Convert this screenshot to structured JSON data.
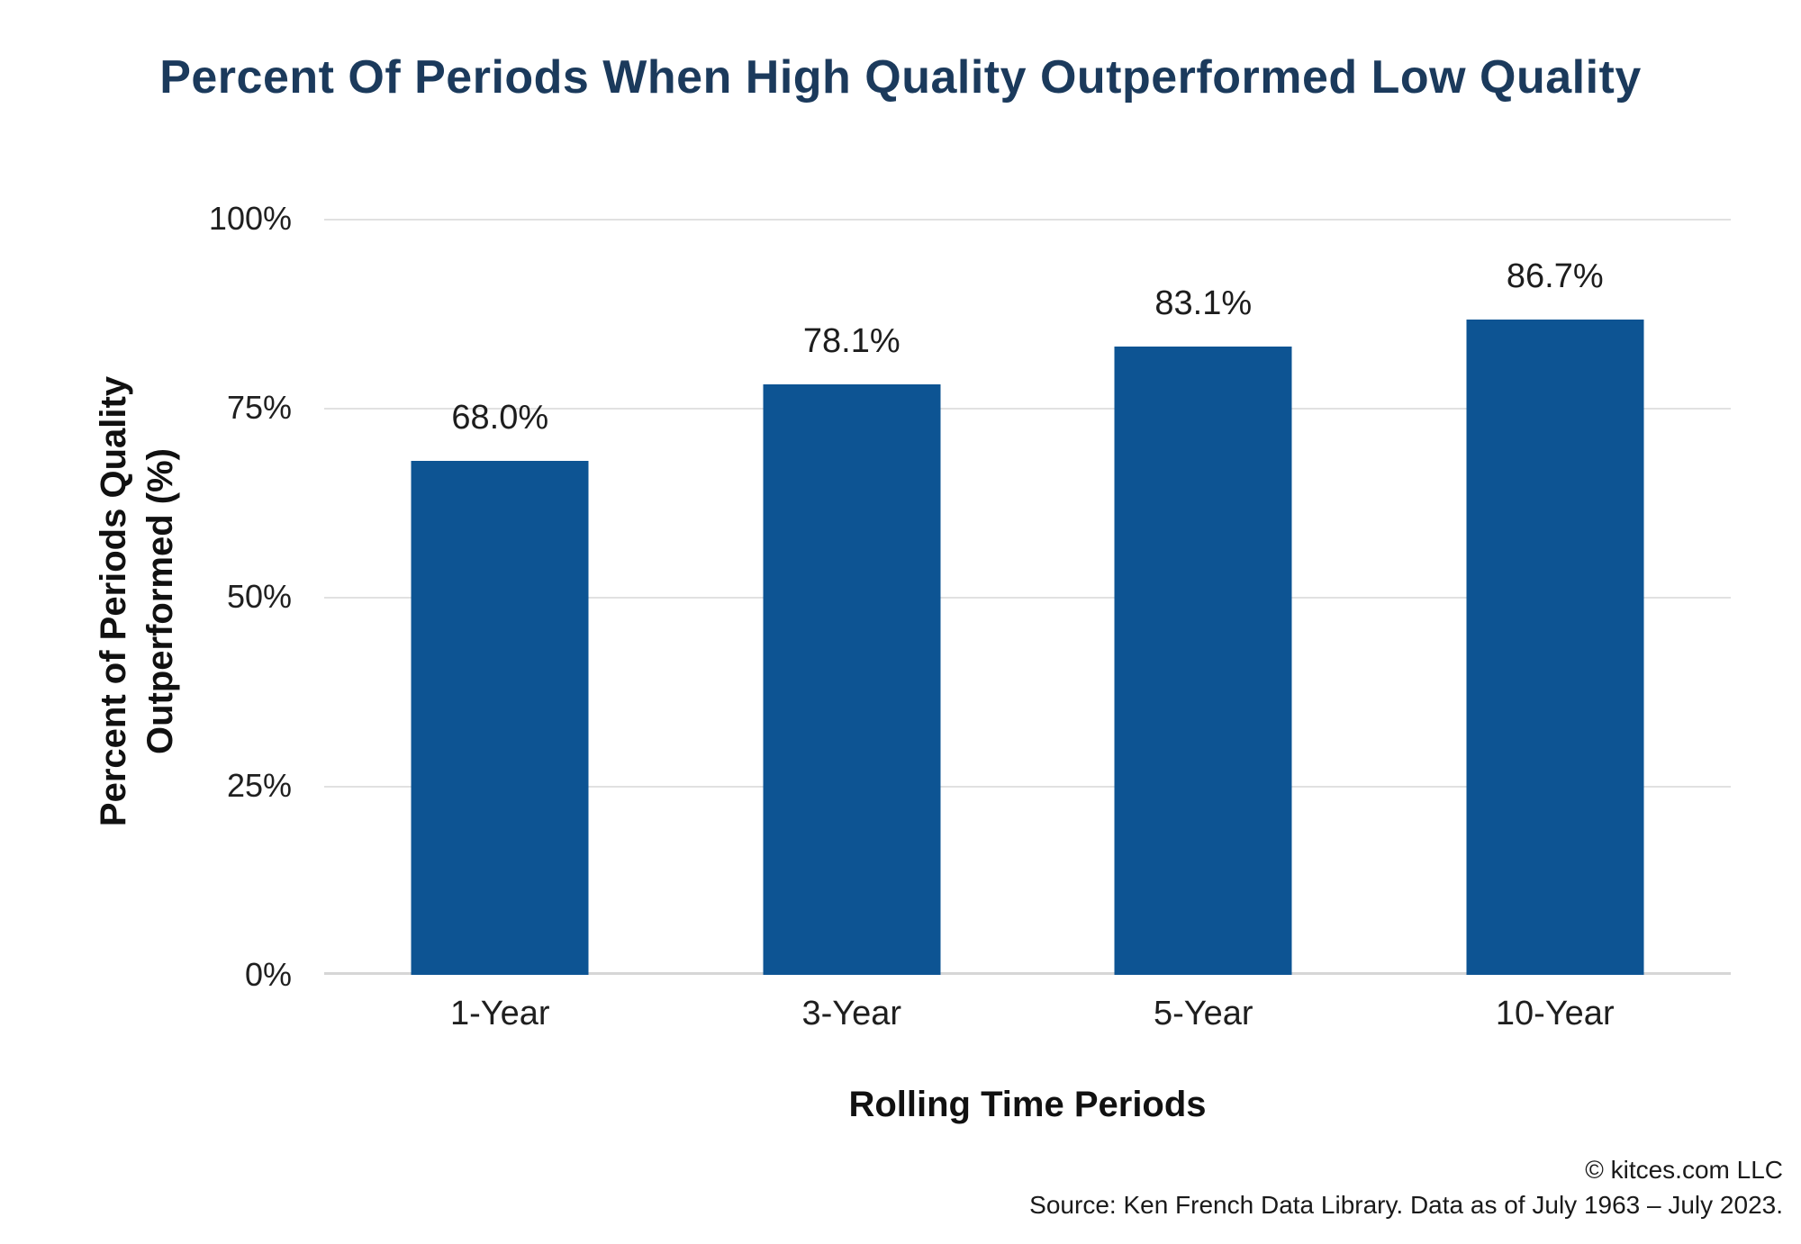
{
  "title": "Percent Of Periods When High Quality Outperformed Low Quality",
  "chart_data": {
    "type": "bar",
    "categories": [
      "1-Year",
      "3-Year",
      "5-Year",
      "10-Year"
    ],
    "values": [
      68.0,
      78.1,
      83.1,
      86.7
    ],
    "value_labels": [
      "68.0%",
      "78.1%",
      "83.1%",
      "86.7%"
    ],
    "title": "Percent Of Periods When High Quality Outperformed Low Quality",
    "xlabel": "Rolling Time Periods",
    "ylabel": "Percent of Periods Quality Outperformed (%)",
    "ylim": [
      0,
      100
    ],
    "grid": "horizontal",
    "legend": "none",
    "bar_color": "#0d5493"
  },
  "y_axis": {
    "title_line1": "Percent of Periods Quality",
    "title_line2": "Outperformed (%)",
    "ticks": [
      "100%",
      "75%",
      "50%",
      "25%",
      "0%"
    ]
  },
  "x_axis": {
    "title": "Rolling Time Periods"
  },
  "footer": {
    "copyright": "© kitces.com LLC",
    "source": "Source: Ken French Data Library. Data as of July 1963 – July 2023."
  },
  "colors": {
    "title": "#1b3a5c",
    "bar": "#0d5493",
    "gridline": "#e1e1e1",
    "text": "#1c1c1c"
  }
}
